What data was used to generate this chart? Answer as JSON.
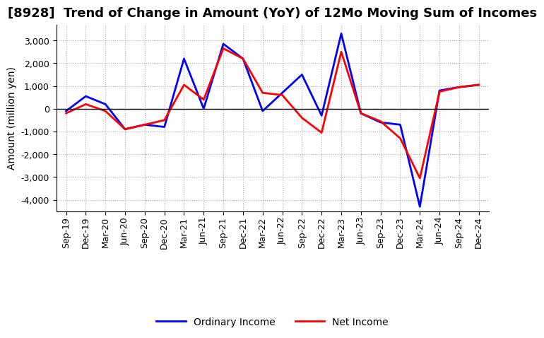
{
  "title": "[8928]  Trend of Change in Amount (YoY) of 12Mo Moving Sum of Incomes",
  "ylabel": "Amount (million yen)",
  "x_labels": [
    "Sep-19",
    "Dec-19",
    "Mar-20",
    "Jun-20",
    "Sep-20",
    "Dec-20",
    "Mar-21",
    "Jun-21",
    "Sep-21",
    "Dec-21",
    "Mar-22",
    "Jun-22",
    "Sep-22",
    "Dec-22",
    "Mar-23",
    "Jun-23",
    "Sep-23",
    "Dec-23",
    "Mar-24",
    "Jun-24",
    "Sep-24",
    "Dec-24"
  ],
  "ordinary_income": [
    -100,
    550,
    200,
    -900,
    -700,
    -800,
    2200,
    0,
    2850,
    2200,
    -100,
    700,
    1500,
    -300,
    3300,
    -200,
    -600,
    -700,
    -4300,
    800,
    950,
    1050
  ],
  "net_income": [
    -200,
    200,
    -100,
    -900,
    -700,
    -500,
    1050,
    400,
    2650,
    2200,
    700,
    600,
    -400,
    -1050,
    2500,
    -200,
    -550,
    -1300,
    -3050,
    750,
    950,
    1050
  ],
  "ordinary_color": "#0000FF",
  "net_color": "#FF0000",
  "ylim_min": -4500,
  "ylim_max": 3700,
  "yticks": [
    -4000,
    -3000,
    -2000,
    -1000,
    0,
    1000,
    2000,
    3000
  ],
  "background_color": "#FFFFFF",
  "grid_color": "#AAAAAA",
  "title_fontsize": 13,
  "label_fontsize": 10,
  "tick_fontsize": 9
}
